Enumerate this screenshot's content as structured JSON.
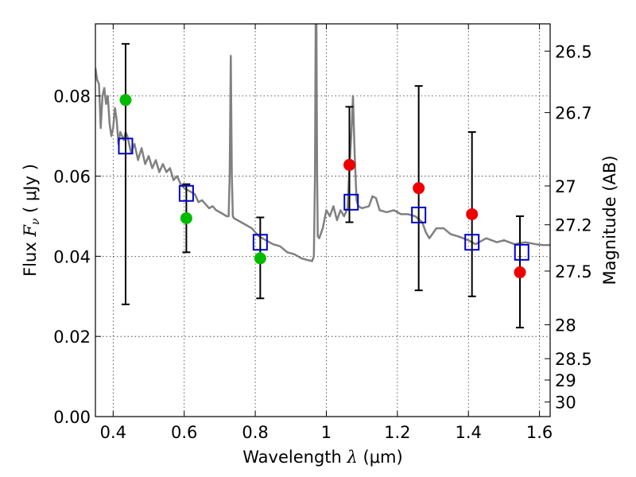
{
  "chart_data": {
    "type": "scatter",
    "x_axis": {
      "label_prefix": "Wavelength ",
      "label_symbol": "λ",
      "label_unit": " (μm)",
      "range": [
        0.35,
        1.63
      ],
      "ticks": [
        0.4,
        0.6,
        0.8,
        1.0,
        1.2,
        1.4,
        1.6
      ],
      "tick_labels": [
        "0.4",
        "0.6",
        "0.8",
        "1",
        "1.2",
        "1.4",
        "1.6"
      ]
    },
    "y_axis_left": {
      "label_prefix": "Flux ",
      "label_symbol": "F",
      "label_sub": "ν",
      "label_unit": " ( μJy )",
      "range": [
        0.0,
        0.098
      ],
      "ticks": [
        0.0,
        0.02,
        0.04,
        0.06,
        0.08
      ],
      "tick_labels": [
        "0.00",
        "0.02",
        "0.04",
        "0.06",
        "0.08"
      ]
    },
    "y_axis_right": {
      "label": "Magnitude (AB)",
      "ticks": [
        26.5,
        26.7,
        27,
        27.2,
        27.5,
        28,
        28.5,
        29,
        30
      ],
      "tick_labels": [
        "26.5",
        "26.7",
        "27",
        "27.2",
        "27.5",
        "28",
        "28.5",
        "29",
        "30"
      ]
    },
    "grid": true,
    "colors": {
      "green": "#00bb00",
      "red": "#ee0000",
      "model": "#808080",
      "box": "#0000cc",
      "errorbar": "#000000"
    },
    "observed_points": [
      {
        "x": 0.435,
        "y": 0.079,
        "yerr_low": 0.028,
        "yerr_high": 0.093,
        "color": "green"
      },
      {
        "x": 0.606,
        "y": 0.0495,
        "yerr_low": 0.041,
        "yerr_high": 0.058,
        "color": "green"
      },
      {
        "x": 0.814,
        "y": 0.0395,
        "yerr_low": 0.0295,
        "yerr_high": 0.0497,
        "color": "green"
      },
      {
        "x": 1.065,
        "y": 0.0628,
        "yerr_low": 0.0485,
        "yerr_high": 0.0773,
        "color": "red"
      },
      {
        "x": 1.26,
        "y": 0.057,
        "yerr_low": 0.0315,
        "yerr_high": 0.0825,
        "color": "red"
      },
      {
        "x": 1.41,
        "y": 0.0505,
        "yerr_low": 0.03,
        "yerr_high": 0.071,
        "color": "red"
      },
      {
        "x": 1.545,
        "y": 0.036,
        "yerr_low": 0.0222,
        "yerr_high": 0.05,
        "color": "red"
      }
    ],
    "model_photometry": [
      {
        "x": 0.435,
        "y": 0.0675
      },
      {
        "x": 0.606,
        "y": 0.0557
      },
      {
        "x": 0.814,
        "y": 0.0435
      },
      {
        "x": 1.07,
        "y": 0.0535
      },
      {
        "x": 1.26,
        "y": 0.0503
      },
      {
        "x": 1.41,
        "y": 0.0435
      },
      {
        "x": 1.55,
        "y": 0.041
      }
    ],
    "model_spectrum": [
      [
        0.35,
        0.087
      ],
      [
        0.355,
        0.084
      ],
      [
        0.36,
        0.083
      ],
      [
        0.365,
        0.072
      ],
      [
        0.37,
        0.08
      ],
      [
        0.375,
        0.082
      ],
      [
        0.38,
        0.078
      ],
      [
        0.385,
        0.08
      ],
      [
        0.39,
        0.073
      ],
      [
        0.395,
        0.07
      ],
      [
        0.4,
        0.072
      ],
      [
        0.405,
        0.077
      ],
      [
        0.41,
        0.074
      ],
      [
        0.415,
        0.068
      ],
      [
        0.42,
        0.071
      ],
      [
        0.43,
        0.069
      ],
      [
        0.435,
        0.071
      ],
      [
        0.44,
        0.07
      ],
      [
        0.45,
        0.066
      ],
      [
        0.46,
        0.068
      ],
      [
        0.47,
        0.064
      ],
      [
        0.48,
        0.067
      ],
      [
        0.49,
        0.063
      ],
      [
        0.5,
        0.065
      ],
      [
        0.51,
        0.062
      ],
      [
        0.52,
        0.064
      ],
      [
        0.53,
        0.061
      ],
      [
        0.54,
        0.063
      ],
      [
        0.55,
        0.061
      ],
      [
        0.56,
        0.062
      ],
      [
        0.57,
        0.059
      ],
      [
        0.58,
        0.06
      ],
      [
        0.59,
        0.058
      ],
      [
        0.6,
        0.057
      ],
      [
        0.62,
        0.056
      ],
      [
        0.63,
        0.0555
      ],
      [
        0.64,
        0.0535
      ],
      [
        0.65,
        0.054
      ],
      [
        0.66,
        0.053
      ],
      [
        0.67,
        0.052
      ],
      [
        0.68,
        0.0525
      ],
      [
        0.69,
        0.0515
      ],
      [
        0.7,
        0.051
      ],
      [
        0.71,
        0.0505
      ],
      [
        0.72,
        0.05
      ],
      [
        0.725,
        0.05
      ],
      [
        0.728,
        0.06
      ],
      [
        0.731,
        0.09
      ],
      [
        0.734,
        0.06
      ],
      [
        0.737,
        0.05
      ],
      [
        0.74,
        0.0495
      ],
      [
        0.75,
        0.049
      ],
      [
        0.77,
        0.048
      ],
      [
        0.79,
        0.047
      ],
      [
        0.81,
        0.045
      ],
      [
        0.83,
        0.044
      ],
      [
        0.85,
        0.043
      ],
      [
        0.87,
        0.0425
      ],
      [
        0.89,
        0.041
      ],
      [
        0.91,
        0.0405
      ],
      [
        0.93,
        0.0395
      ],
      [
        0.95,
        0.039
      ],
      [
        0.96,
        0.0388
      ],
      [
        0.965,
        0.04
      ],
      [
        0.968,
        0.06
      ],
      [
        0.97,
        0.098
      ],
      [
        0.972,
        0.098
      ],
      [
        0.974,
        0.06
      ],
      [
        0.976,
        0.045
      ],
      [
        0.98,
        0.0445
      ],
      [
        0.99,
        0.047
      ],
      [
        1.0,
        0.0515
      ],
      [
        1.01,
        0.05
      ],
      [
        1.02,
        0.0525
      ],
      [
        1.03,
        0.049
      ],
      [
        1.04,
        0.0515
      ],
      [
        1.05,
        0.05
      ],
      [
        1.06,
        0.052
      ],
      [
        1.065,
        0.062
      ],
      [
        1.07,
        0.07
      ],
      [
        1.075,
        0.08
      ],
      [
        1.08,
        0.065
      ],
      [
        1.085,
        0.054
      ],
      [
        1.09,
        0.0525
      ],
      [
        1.1,
        0.052
      ],
      [
        1.12,
        0.0525
      ],
      [
        1.13,
        0.055
      ],
      [
        1.14,
        0.0545
      ],
      [
        1.15,
        0.0515
      ],
      [
        1.17,
        0.051
      ],
      [
        1.19,
        0.0515
      ],
      [
        1.21,
        0.0505
      ],
      [
        1.23,
        0.0505
      ],
      [
        1.25,
        0.05
      ],
      [
        1.27,
        0.0485
      ],
      [
        1.28,
        0.046
      ],
      [
        1.29,
        0.0445
      ],
      [
        1.31,
        0.047
      ],
      [
        1.33,
        0.047
      ],
      [
        1.35,
        0.0455
      ],
      [
        1.37,
        0.045
      ],
      [
        1.4,
        0.044
      ],
      [
        1.42,
        0.043
      ],
      [
        1.45,
        0.0445
      ],
      [
        1.48,
        0.0435
      ],
      [
        1.5,
        0.044
      ],
      [
        1.53,
        0.043
      ],
      [
        1.56,
        0.0435
      ],
      [
        1.59,
        0.043
      ],
      [
        1.61,
        0.0428
      ],
      [
        1.63,
        0.0428
      ]
    ]
  }
}
